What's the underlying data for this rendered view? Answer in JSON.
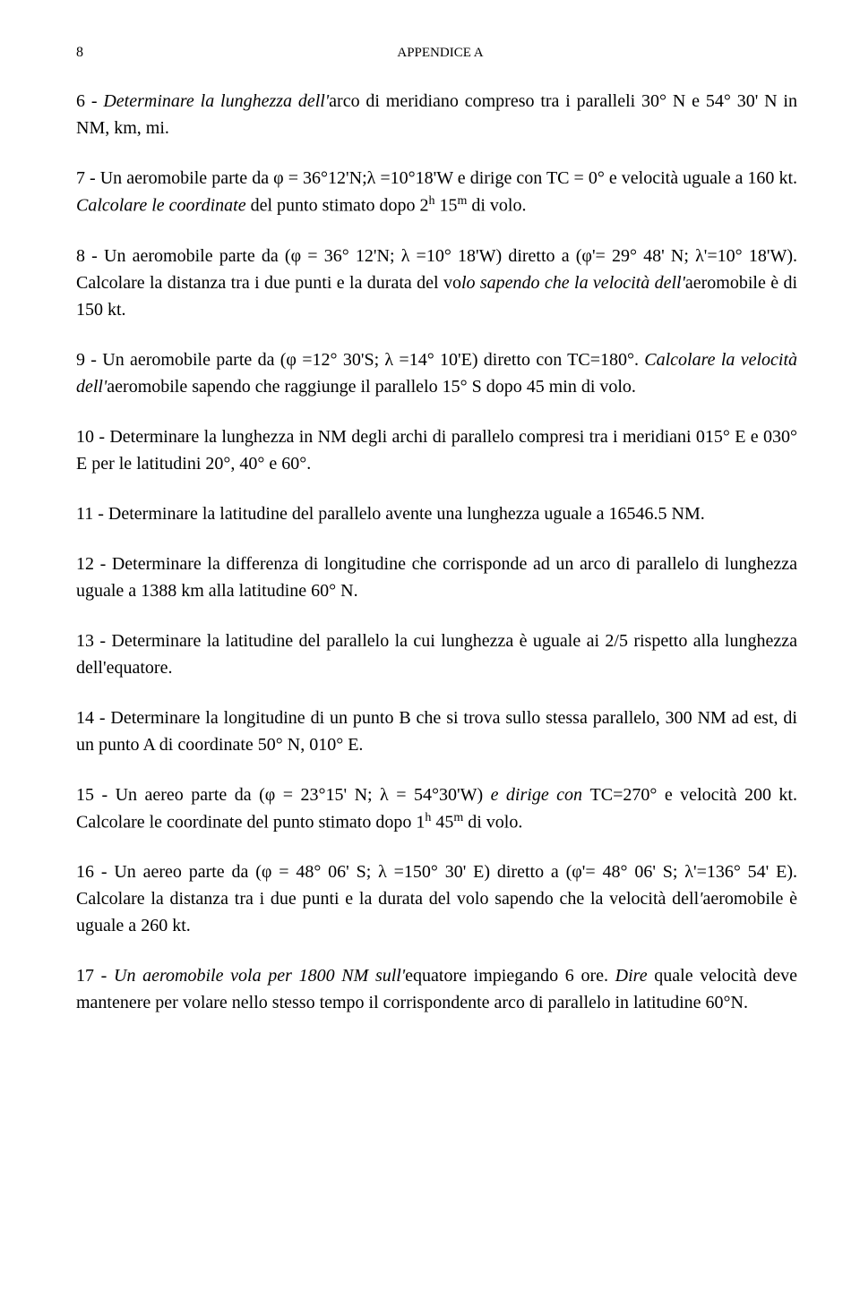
{
  "pageNumber": "8",
  "headerTitle": "APPENDICE A",
  "problems": {
    "p6": {
      "lead": "6 - ",
      "italic": "Determinare la lunghezza dell'",
      "plain": "arco di meridiano compreso tra i paralleli 30° N e 54° 30' N in NM, km, mi."
    },
    "p7": {
      "text1": "7 - Un aeromobile parte da φ = 36°12'N;λ =10°18'W e dirige con TC = 0° e velocità uguale a 160 kt.",
      "italic": " Calcolare le coordinate ",
      "text2": "del punto stimato dopo 2",
      "sup1": "h",
      "text3": " 15",
      "sup2": "m",
      "text4": " di volo."
    },
    "p8": {
      "text1": "8 - Un aeromobile parte da (φ = 36° 12'N; λ =10° 18'W) diretto a (φ'= 29° 48' N; λ'=10° 18'W). Calcolare la distanza tra i due punti e la durata del vo",
      "italic": "lo sapendo che la velocità dell'",
      "text2": "aeromobile è di 150 kt."
    },
    "p9": {
      "text1": "9 - Un aeromobile parte da (φ =12° 30'S; λ =14° 10'E) diretto con TC=180°. ",
      "italic": "Calcolare la velocità dell'",
      "text2": "aeromobile sapendo che raggiunge il parallelo 15° S dopo 45 min di volo."
    },
    "p10": {
      "text": "10 - Determinare la lunghezza in NM degli archi di parallelo compresi tra i meridiani 015° E e 030° E per le latitudini 20°, 40° e 60°."
    },
    "p11": {
      "text": "11 - Determinare la latitudine del parallelo avente una lunghezza uguale a 16546.5 NM."
    },
    "p12": {
      "text": "12 - Determinare la differenza di longitudine che corrisponde ad un arco di parallelo di lunghezza uguale a 1388 km alla latitudine 60° N."
    },
    "p13": {
      "text": "13 - Determinare la latitudine del parallelo la cui lunghezza è uguale ai 2/5 rispetto alla lunghezza dell'equatore."
    },
    "p14": {
      "text": "14 - Determinare la longitudine di un punto B che si trova sullo stessa parallelo, 300 NM ad est, di un punto A di coordinate 50° N, 010° E."
    },
    "p15": {
      "text1": "15 - Un aereo parte da (φ = 23°15' N; λ = 54°30'W) ",
      "italic": "e dirige con ",
      "text2": "TC=270° e velocità 200 kt. Calcolare le coordinate del punto stimato dopo 1",
      "sup1": "h",
      "text3": " 45",
      "sup2": "m",
      "text4": " di volo."
    },
    "p16": {
      "text1": "16 - Un aereo parte da (φ = 48° 06' S; λ =150° 30' E) diretto a (φ'= 48° 06' S; λ'=136° 54' E). Calcolare la distanza tra i due punti e la durata del volo sapendo che la velocità dell",
      "italic": "'",
      "text2": "aeromobile è uguale a 260 kt."
    },
    "p17": {
      "text1": "17 - ",
      "italic1": "Un aeromobile vola per 1800 NM sull'",
      "text2": "equatore impiegando 6 ore. ",
      "italic2": "Dire ",
      "text3": "quale velocità deve mantenere per volare nello stesso tempo il corrispondente arco di parallelo in latitudine 60°N."
    }
  }
}
